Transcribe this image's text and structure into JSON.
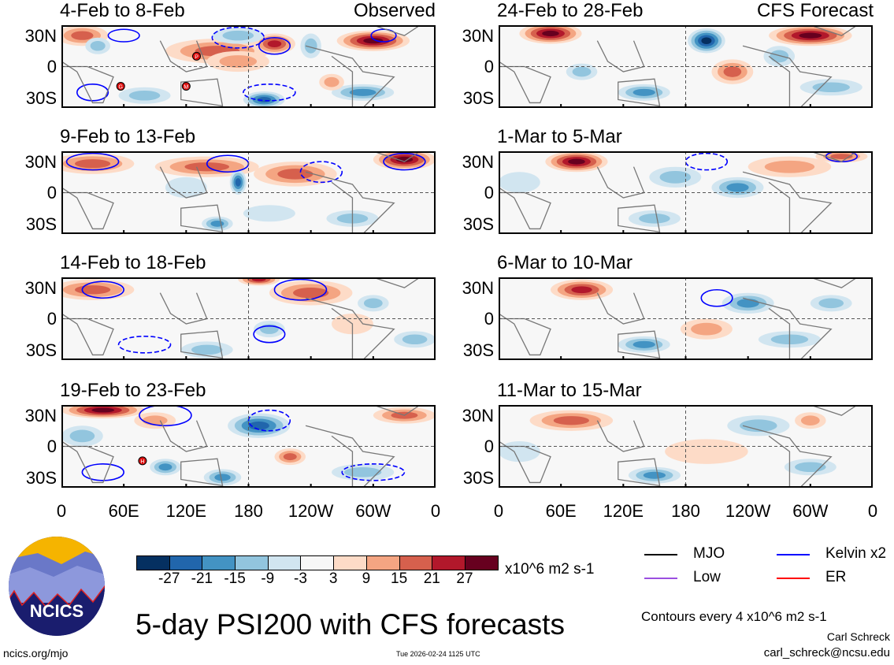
{
  "header": {
    "left_tag": "Observed",
    "right_tag": "CFS Forecast"
  },
  "chart_data": {
    "type": "heatmap",
    "title": "5-day PSI200 with CFS forecasts",
    "variable": "PSI200 anomaly",
    "units": "x10^6 m2 s-1",
    "y_ticks": [
      "30N",
      "0",
      "30S"
    ],
    "x_ticks": [
      "0",
      "60E",
      "120E",
      "180",
      "120W",
      "60W",
      "0"
    ],
    "xlim": [
      0,
      360
    ],
    "ylim": [
      -40,
      40
    ],
    "colorbar": {
      "ticks": [
        "-27",
        "-21",
        "-15",
        "-9",
        "-3",
        "3",
        "9",
        "15",
        "21",
        "27"
      ],
      "colors": [
        "#053061",
        "#2166ac",
        "#4393c3",
        "#92c5de",
        "#d1e5f0",
        "#f7f7f7",
        "#fddbc7",
        "#f4a582",
        "#d6604d",
        "#b2182b",
        "#67001f"
      ]
    },
    "panels": [
      {
        "title": "4-Feb to 8-Feb",
        "source": "Observed",
        "storms": [
          {
            "label": "P",
            "lon": 130,
            "lat": 10
          },
          {
            "label": "G",
            "lon": 57,
            "lat": -19
          },
          {
            "label": "M",
            "lon": 120,
            "lat": -19
          }
        ]
      },
      {
        "title": "9-Feb to 13-Feb",
        "source": "Observed",
        "storms": []
      },
      {
        "title": "14-Feb to 18-Feb",
        "source": "Observed",
        "storms": []
      },
      {
        "title": "19-Feb to 23-Feb",
        "source": "Observed",
        "storms": [
          {
            "label": "H",
            "lon": 78,
            "lat": -14
          }
        ]
      },
      {
        "title": "24-Feb to 28-Feb",
        "source": "CFS Forecast",
        "storms": []
      },
      {
        "title": "1-Mar to 5-Mar",
        "source": "CFS Forecast",
        "storms": []
      },
      {
        "title": "6-Mar to 10-Mar",
        "source": "CFS Forecast",
        "storms": []
      },
      {
        "title": "11-Mar to 15-Mar",
        "source": "CFS Forecast",
        "storms": []
      }
    ],
    "legend": {
      "items": [
        {
          "label": "MJO",
          "color": "#000000"
        },
        {
          "label": "Kelvin x2",
          "color": "#0000ff"
        },
        {
          "label": "Low",
          "color": "#9b4fe0"
        },
        {
          "label": "ER",
          "color": "#ff0000"
        }
      ]
    },
    "contour_note": "Contours every 4 x10^6 m2 s-1"
  },
  "logo": {
    "text": "NCICS"
  },
  "footer": {
    "url": "ncics.org/mjo",
    "timestamp": "Tue 2026-02-24 1125 UTC",
    "author": "Carl Schreck",
    "email": "carl_schreck@ncsu.edu"
  }
}
